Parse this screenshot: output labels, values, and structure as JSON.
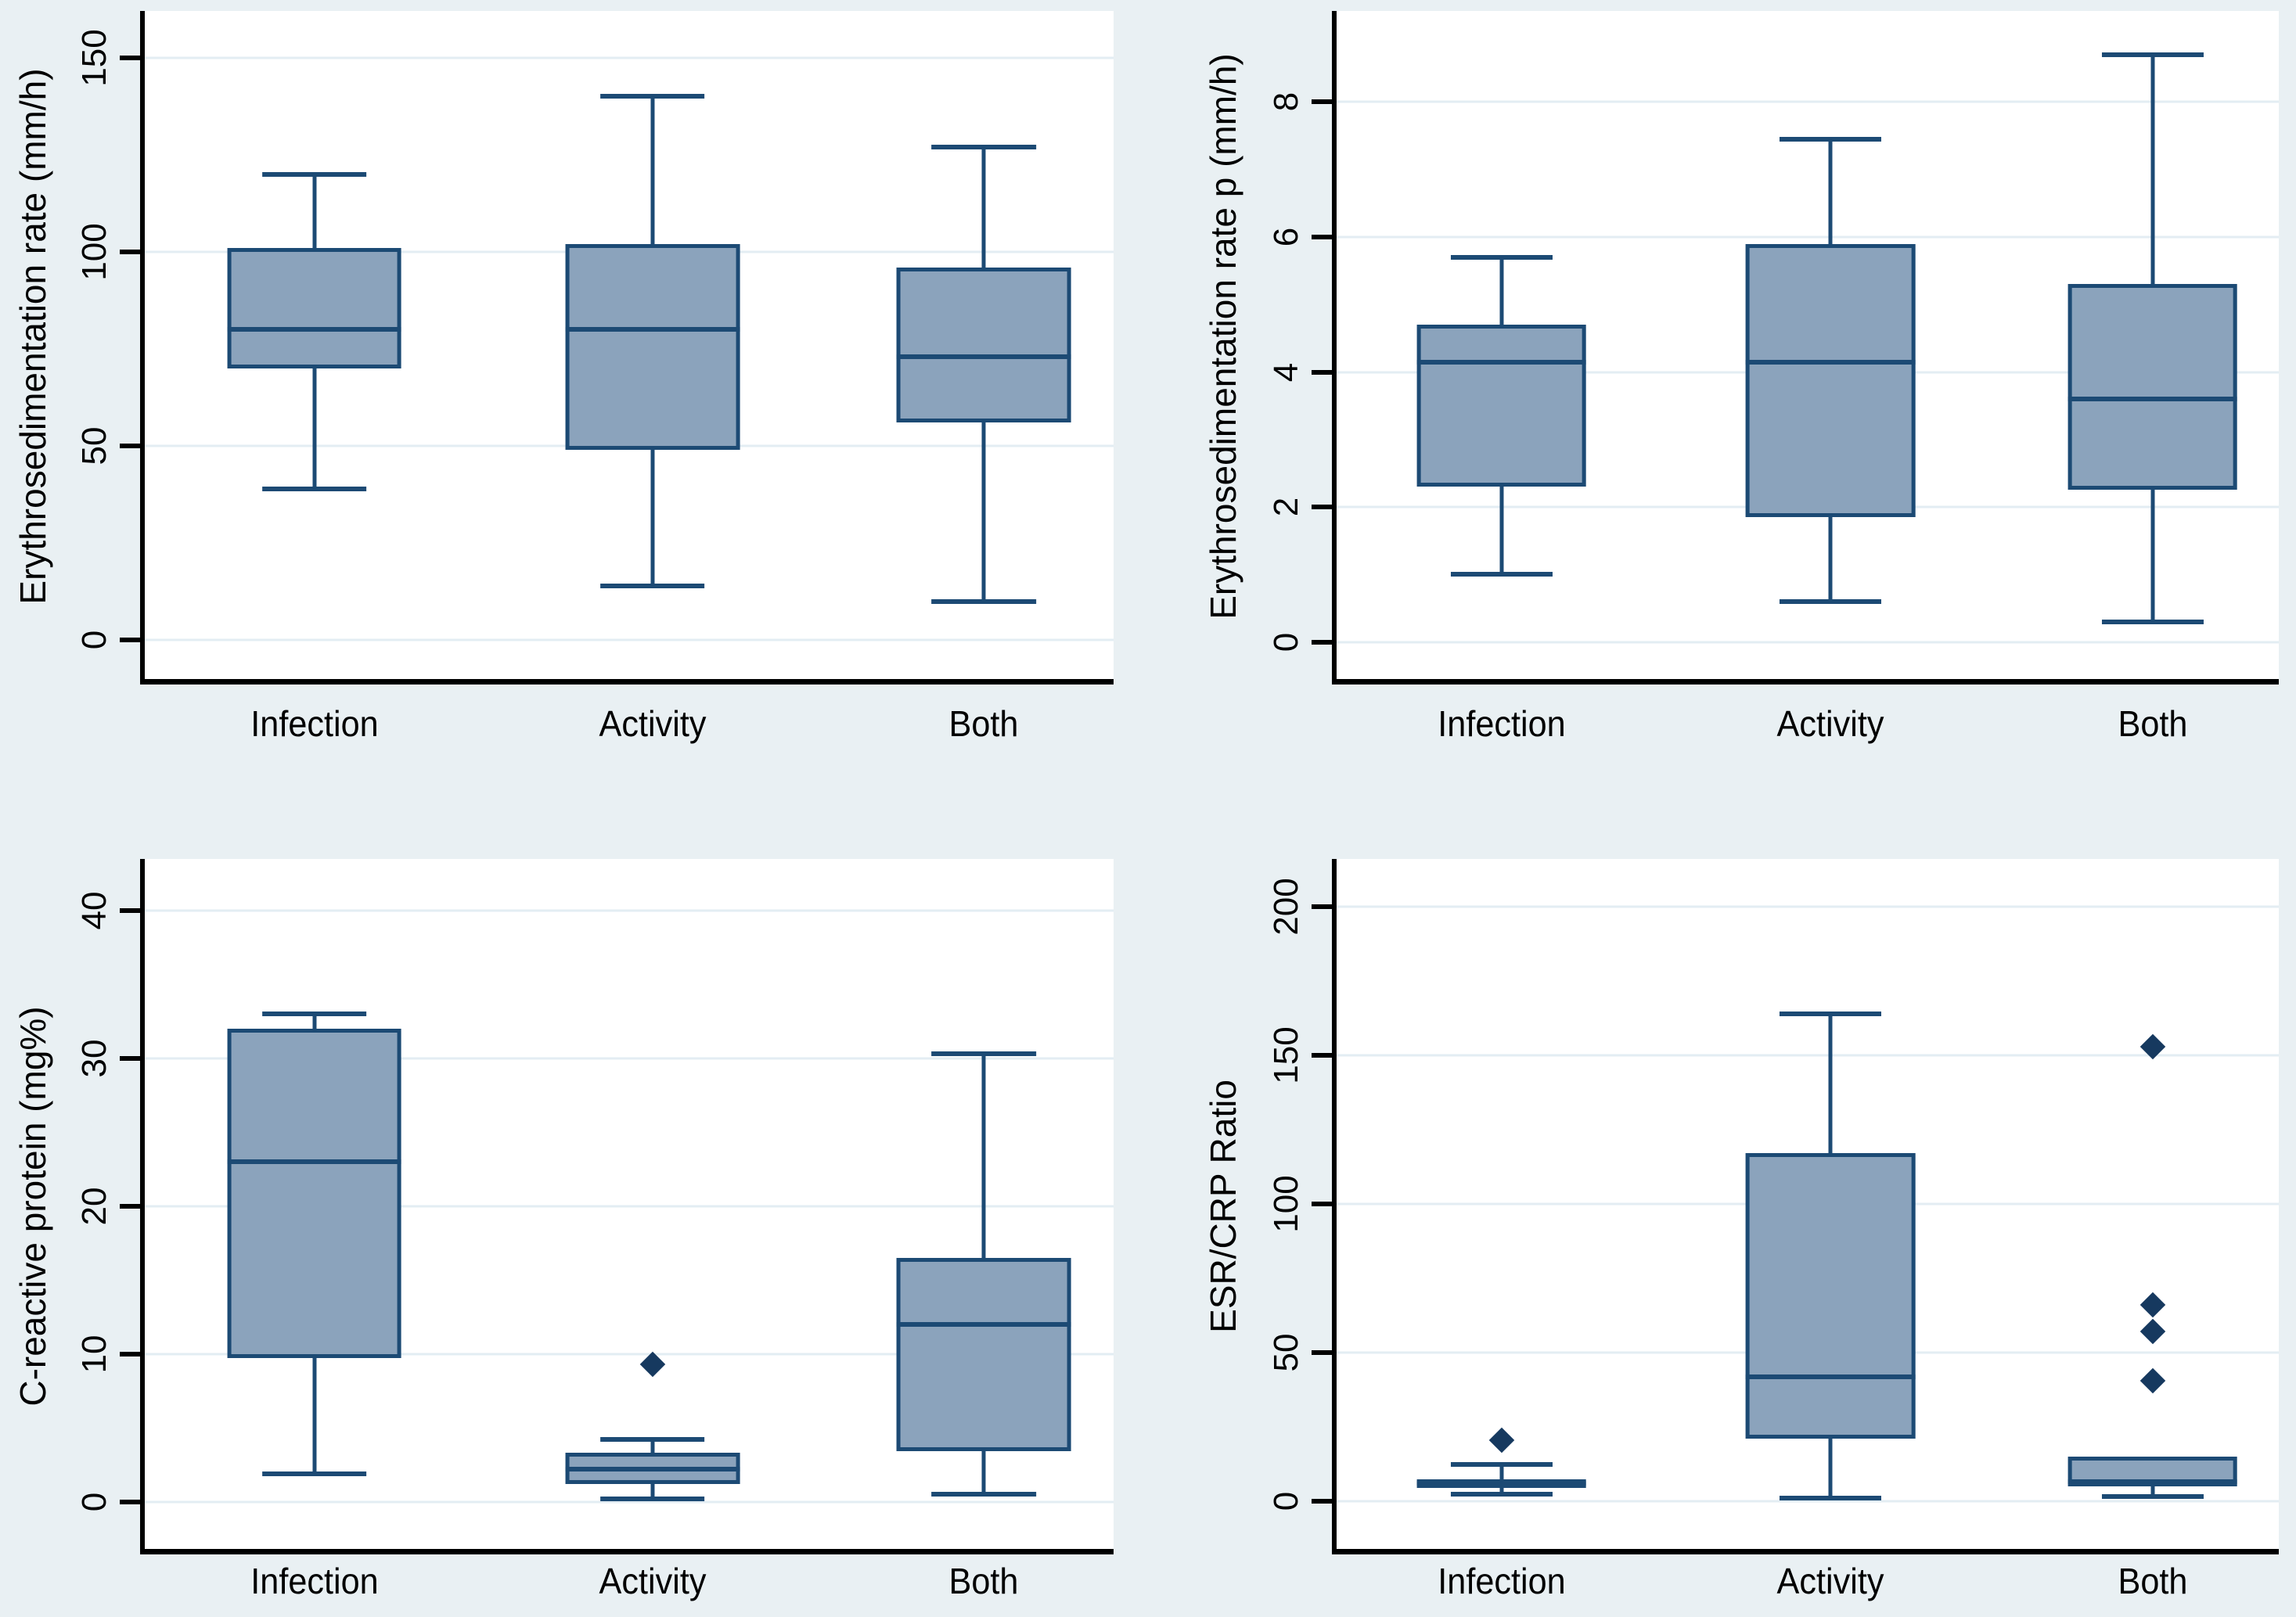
{
  "figure": {
    "description": "Four box plots comparing laboratory markers across Infection, Activity and Both groups",
    "background_color": "#e9f0f3",
    "plot_background_color": "#ffffff",
    "gridline_color": "#e3edf3",
    "axis_color": "#000000",
    "box_fill_color": "#8ba3bc",
    "box_border_color": "#1c4a74",
    "median_color": "#1c4a74",
    "whisker_color": "#1c4a74",
    "outlier_color": "#16395f",
    "text_color": "#000000"
  },
  "chart_data": [
    {
      "type": "box",
      "panel": "top-left",
      "title": "",
      "xlabel": "",
      "ylabel": "Erythrosedimentation rate (mm/h)",
      "categories": [
        "Infection",
        "Activity",
        "Both"
      ],
      "ylim": [
        -10,
        162
      ],
      "grid": true,
      "yticks": [
        {
          "value": 0,
          "label": "0"
        },
        {
          "value": 50,
          "label": "50"
        },
        {
          "value": 100,
          "label": "100"
        },
        {
          "value": 150,
          "label": "150"
        }
      ],
      "series": [
        {
          "name": "Infection",
          "low": 39,
          "q1": 70,
          "median": 80,
          "q3": 101,
          "high": 120,
          "outliers": []
        },
        {
          "name": "Activity",
          "low": 14,
          "q1": 49,
          "median": 80,
          "q3": 102,
          "high": 140,
          "outliers": []
        },
        {
          "name": "Both",
          "low": 10,
          "q1": 56,
          "median": 73,
          "q3": 96,
          "high": 127,
          "outliers": []
        }
      ]
    },
    {
      "type": "box",
      "panel": "top-right",
      "title": "",
      "xlabel": "",
      "ylabel": "Erythrosedimentation rate p (mm/h)",
      "categories": [
        "Infection",
        "Activity",
        "Both"
      ],
      "ylim": [
        -0.55,
        9.35
      ],
      "grid": true,
      "yticks": [
        {
          "value": 0,
          "label": "0"
        },
        {
          "value": 2,
          "label": "2"
        },
        {
          "value": 4,
          "label": "4"
        },
        {
          "value": 6,
          "label": "6"
        },
        {
          "value": 8,
          "label": "8"
        }
      ],
      "series": [
        {
          "name": "Infection",
          "low": 1.0,
          "q1": 2.3,
          "median": 4.15,
          "q3": 4.7,
          "high": 5.7,
          "outliers": []
        },
        {
          "name": "Activity",
          "low": 0.6,
          "q1": 1.85,
          "median": 4.15,
          "q3": 5.9,
          "high": 7.45,
          "outliers": []
        },
        {
          "name": "Both",
          "low": 0.3,
          "q1": 2.25,
          "median": 3.6,
          "q3": 5.3,
          "high": 8.7,
          "outliers": []
        }
      ]
    },
    {
      "type": "box",
      "panel": "bottom-left",
      "title": "",
      "xlabel": "",
      "ylabel": "C-reactive protein (mg%)",
      "categories": [
        "Infection",
        "Activity",
        "Both"
      ],
      "ylim": [
        -3.2,
        43.5
      ],
      "grid": true,
      "yticks": [
        {
          "value": 0,
          "label": "0"
        },
        {
          "value": 10,
          "label": "10"
        },
        {
          "value": 20,
          "label": "20"
        },
        {
          "value": 30,
          "label": "30"
        },
        {
          "value": 40,
          "label": "40"
        }
      ],
      "series": [
        {
          "name": "Infection",
          "low": 1.9,
          "q1": 9.7,
          "median": 23,
          "q3": 32,
          "high": 33,
          "outliers": []
        },
        {
          "name": "Activity",
          "low": 0.2,
          "q1": 1.2,
          "median": 2.2,
          "q3": 3.3,
          "high": 4.2,
          "outliers": [
            9.3
          ]
        },
        {
          "name": "Both",
          "low": 0.5,
          "q1": 3.4,
          "median": 12,
          "q3": 16.5,
          "high": 30.3,
          "outliers": []
        }
      ]
    },
    {
      "type": "box",
      "panel": "bottom-right",
      "title": "",
      "xlabel": "",
      "ylabel": "ESR/CRP Ratio",
      "categories": [
        "Infection",
        "Activity",
        "Both"
      ],
      "ylim": [
        -16,
        216
      ],
      "grid": true,
      "yticks": [
        {
          "value": 0,
          "label": "0"
        },
        {
          "value": 50,
          "label": "50"
        },
        {
          "value": 100,
          "label": "100"
        },
        {
          "value": 150,
          "label": "150"
        },
        {
          "value": 200,
          "label": "200"
        }
      ],
      "series": [
        {
          "name": "Infection",
          "low": 2.3,
          "q1": 4.5,
          "median": 6,
          "q3": 7.5,
          "high": 12.5,
          "outliers": [
            20.5
          ]
        },
        {
          "name": "Activity",
          "low": 1,
          "q1": 21,
          "median": 42,
          "q3": 117,
          "high": 164,
          "outliers": []
        },
        {
          "name": "Both",
          "low": 1.5,
          "q1": 5,
          "median": 6.5,
          "q3": 15,
          "high": 15,
          "outliers": [
            40.5,
            57,
            66,
            153
          ]
        }
      ]
    }
  ]
}
